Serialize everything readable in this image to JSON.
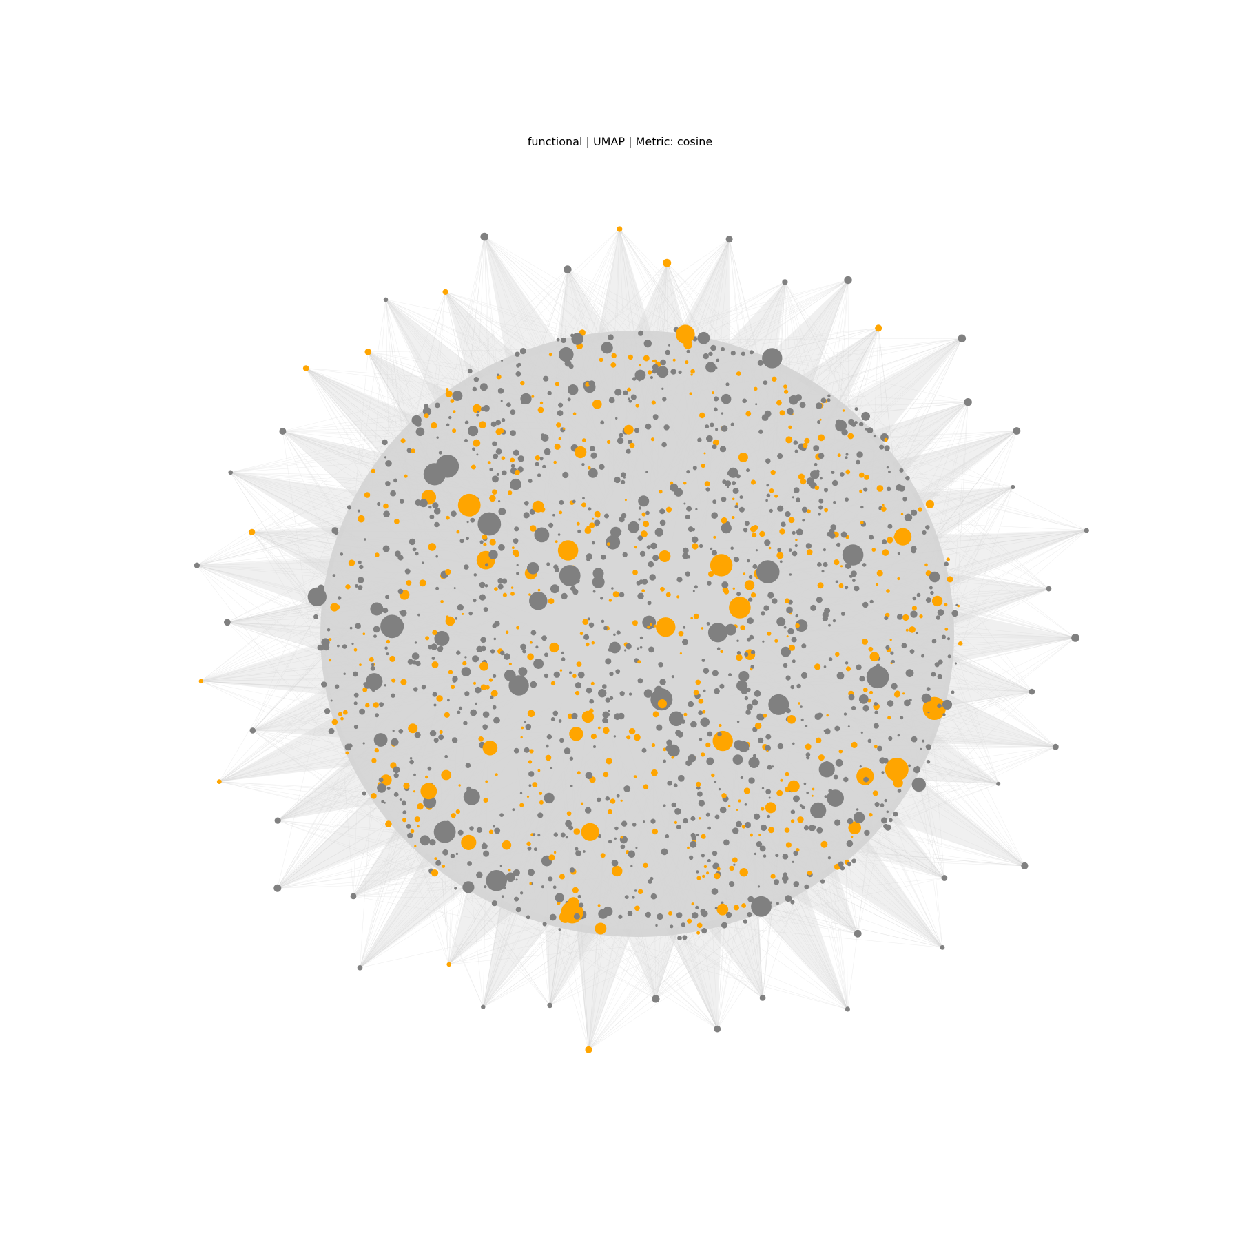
{
  "title": "functional | UMAP | Metric: cosine",
  "colors": {
    "background": "#ffffff",
    "node_group_a": "#808080",
    "node_group_b": "#ffa500",
    "edges": "#d3d3d3"
  },
  "chart_data": {
    "type": "network",
    "title": "functional | UMAP | Metric: cosine",
    "layout": "radial cluster (UMAP embedding)",
    "axes_visible": false,
    "grid": false,
    "legend": "none",
    "node_color_groups": [
      "#808080",
      "#ffa500"
    ],
    "edge_color": "#d3d3d3"
  }
}
